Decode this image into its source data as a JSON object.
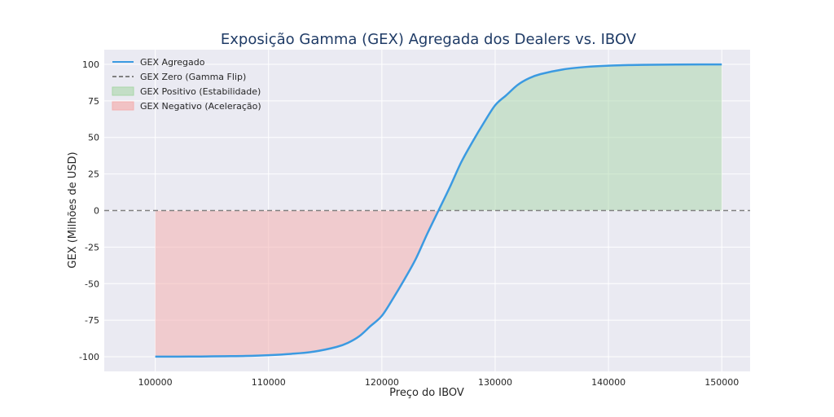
{
  "chart_data": {
    "type": "line",
    "title": "Exposição Gamma (GEX) Agregada dos Dealers vs. IBOV",
    "xlabel": "Preço do IBOV",
    "ylabel": "GEX (Milhões de USD)",
    "xlim": [
      95500,
      152500
    ],
    "ylim": [
      -110,
      110
    ],
    "x_ticks": [
      100000,
      110000,
      120000,
      130000,
      140000,
      150000
    ],
    "x_tick_labels": [
      "100000",
      "110000",
      "120000",
      "130000",
      "140000",
      "150000"
    ],
    "y_ticks": [
      100,
      75,
      50,
      25,
      0,
      -25,
      -50,
      -75,
      -100
    ],
    "y_tick_labels": [
      "100",
      "75",
      "50",
      "25",
      "0",
      "-25",
      "-50",
      "-75",
      "-100"
    ],
    "grid": true,
    "legend_position": "top-left",
    "series": [
      {
        "name": "GEX Agregado",
        "color": "#3b9ae1",
        "x": [
          100000,
          102000,
          104000,
          106000,
          108000,
          110000,
          112000,
          114000,
          116000,
          117000,
          118000,
          119000,
          120000,
          121000,
          122000,
          123000,
          124000,
          125000,
          126000,
          127000,
          128000,
          129000,
          130000,
          131000,
          132000,
          133000,
          134000,
          136000,
          138000,
          140000,
          142000,
          144000,
          146000,
          148000,
          150000
        ],
        "y": [
          -99.9,
          -99.9,
          -99.8,
          -99.6,
          -99.4,
          -98.9,
          -98.0,
          -96.5,
          -93.3,
          -90.5,
          -86.0,
          -79.0,
          -72.0,
          -60.0,
          -47.0,
          -33.0,
          -16.0,
          0.0,
          16.0,
          33.0,
          47.0,
          60.0,
          72.0,
          79.0,
          86.0,
          90.5,
          93.3,
          96.5,
          98.2,
          99.1,
          99.5,
          99.7,
          99.8,
          99.9,
          99.9
        ]
      },
      {
        "name": "GEX Zero (Gamma Flip)",
        "color": "#808080",
        "value": 0
      }
    ],
    "fills": [
      {
        "name": "GEX Positivo (Estabilidade)",
        "color": "#a8d5a8",
        "where": "y > 0"
      },
      {
        "name": "GEX Negativo (Aceleração)",
        "color": "#f4b0b0",
        "where": "y < 0"
      }
    ]
  }
}
